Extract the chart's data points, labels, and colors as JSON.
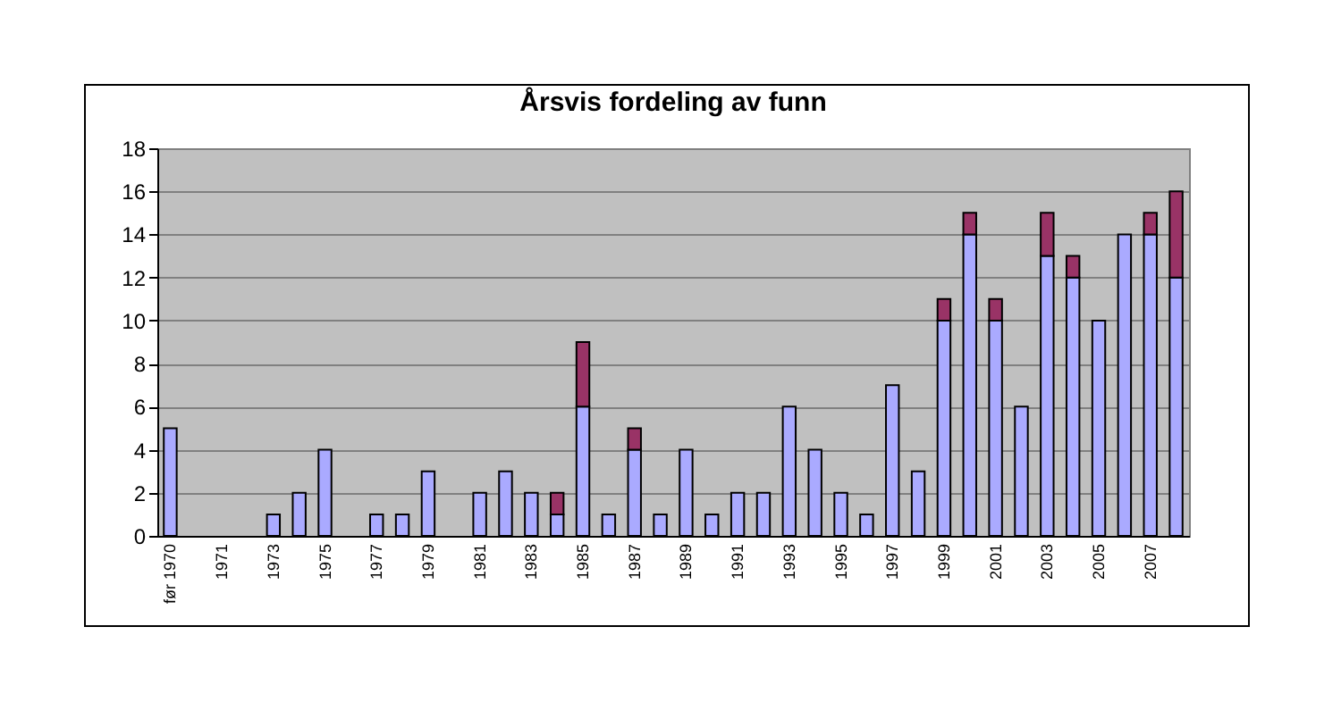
{
  "chart_data": {
    "type": "bar",
    "title": "Årsvis fordeling av funn",
    "categories": [
      "før 1970",
      null,
      "1971",
      null,
      "1973",
      null,
      "1975",
      null,
      "1977",
      null,
      "1979",
      null,
      "1981",
      null,
      "1983",
      null,
      "1985",
      null,
      "1987",
      null,
      "1989",
      null,
      "1991",
      null,
      "1993",
      null,
      "1995",
      null,
      "1997",
      null,
      "1999",
      null,
      "2001",
      null,
      "2003",
      null,
      "2005",
      null,
      "2007",
      null
    ],
    "stacked": true,
    "series": [
      {
        "color": "#aaaaff",
        "values": [
          5,
          null,
          null,
          null,
          1,
          2,
          4,
          null,
          1,
          1,
          3,
          null,
          2,
          3,
          2,
          1,
          6,
          1,
          4,
          1,
          4,
          1,
          2,
          2,
          6,
          4,
          2,
          1,
          7,
          3,
          10,
          14,
          10,
          6,
          13,
          12,
          10,
          14,
          14,
          12
        ]
      },
      {
        "color": "#993366",
        "values": [
          null,
          null,
          null,
          null,
          null,
          null,
          null,
          null,
          null,
          null,
          null,
          null,
          null,
          null,
          null,
          1,
          3,
          null,
          1,
          null,
          null,
          null,
          null,
          null,
          null,
          null,
          null,
          null,
          null,
          null,
          1,
          1,
          1,
          null,
          2,
          1,
          null,
          null,
          1,
          4
        ]
      }
    ],
    "ylim": [
      0,
      18
    ],
    "yticks": [
      0,
      2,
      4,
      6,
      8,
      10,
      12,
      14,
      16,
      18
    ],
    "grid": "y"
  }
}
